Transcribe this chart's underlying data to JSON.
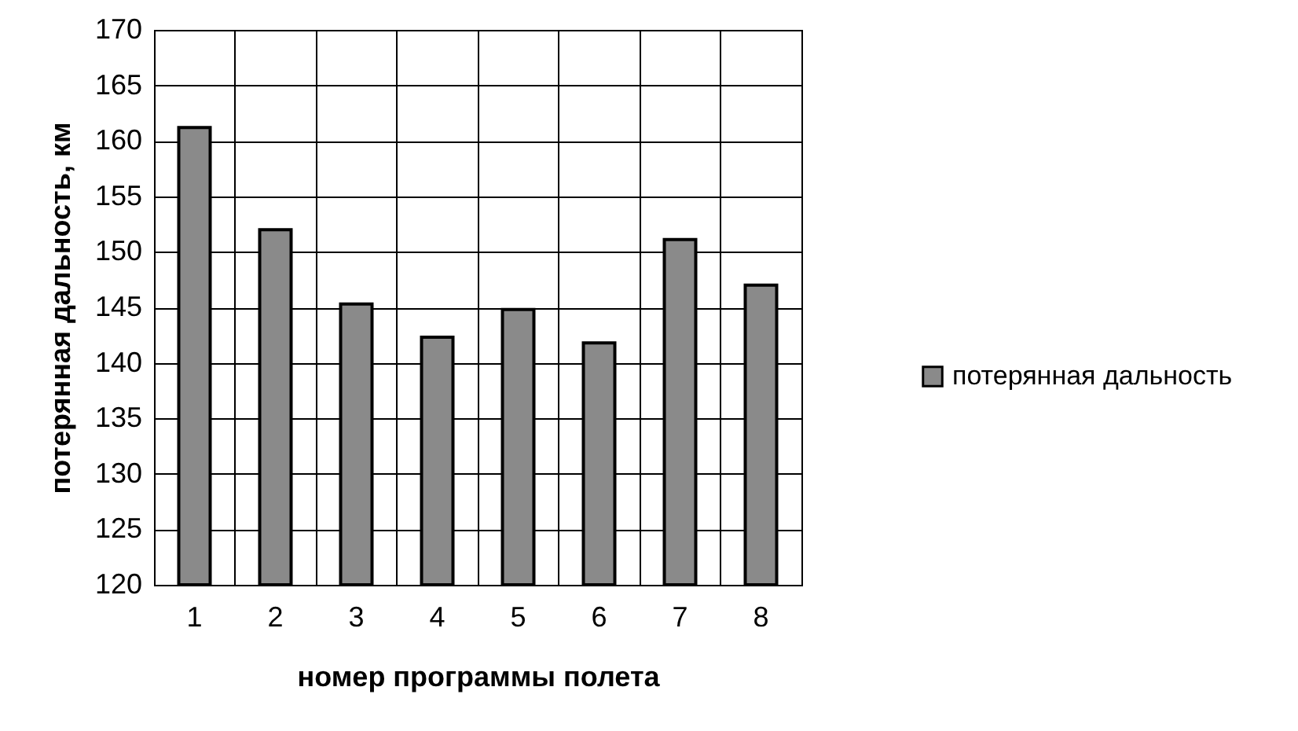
{
  "chart_data": {
    "type": "bar",
    "xlabel": "номер программы полета",
    "ylabel": "потерянная дальность, км",
    "categories": [
      "1",
      "2",
      "3",
      "4",
      "5",
      "6",
      "7",
      "8"
    ],
    "series": [
      {
        "name": "потерянная дальность",
        "color": "#8a8a8a",
        "values": [
          161.2,
          152,
          145.3,
          142.3,
          144.8,
          141.8,
          151.1,
          147.0
        ]
      }
    ],
    "ylim": [
      120,
      170
    ],
    "yticks": [
      120,
      125,
      130,
      135,
      140,
      145,
      150,
      155,
      160,
      165,
      170
    ],
    "grid": true,
    "legend": "right"
  }
}
